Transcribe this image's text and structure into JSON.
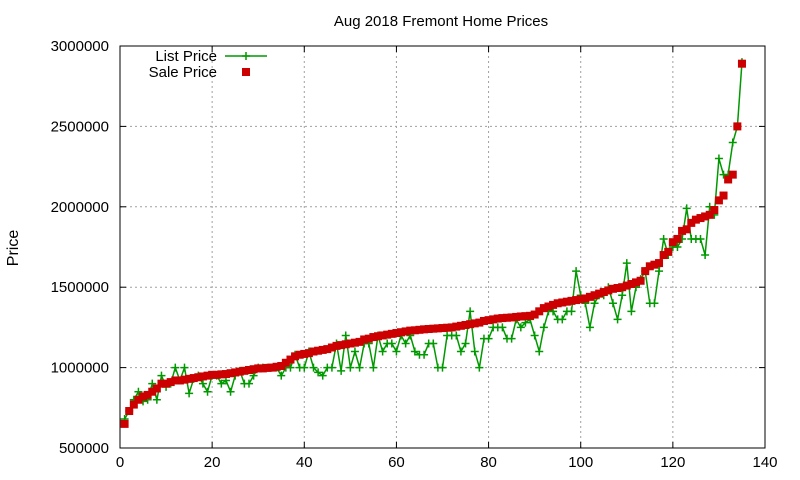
{
  "chart_data": {
    "type": "line",
    "title": "Aug 2018 Fremont Home Prices",
    "xlabel": "",
    "ylabel": "Price",
    "xlim": [
      0,
      140
    ],
    "ylim": [
      500000,
      3000000
    ],
    "x_ticks": [
      0,
      20,
      40,
      60,
      80,
      100,
      120,
      140
    ],
    "y_ticks": [
      500000,
      1000000,
      1500000,
      2000000,
      2500000,
      3000000
    ],
    "x_tick_labels": [
      "0",
      "20",
      "40",
      "60",
      "80",
      "100",
      "120",
      "140"
    ],
    "y_tick_labels": [
      "500000",
      "1000000",
      "1500000",
      "2000000",
      "2500000",
      "3000000"
    ],
    "grid": true,
    "legend_position": "top-left",
    "series": [
      {
        "name": "List Price",
        "marker": "plus",
        "color": "#009900",
        "x": [
          1,
          2,
          3,
          4,
          5,
          6,
          7,
          8,
          9,
          10,
          11,
          12,
          13,
          14,
          15,
          16,
          17,
          18,
          19,
          20,
          21,
          22,
          23,
          24,
          25,
          26,
          27,
          28,
          29,
          30,
          31,
          32,
          33,
          34,
          35,
          36,
          37,
          38,
          39,
          40,
          41,
          42,
          43,
          44,
          45,
          46,
          47,
          48,
          49,
          50,
          51,
          52,
          53,
          54,
          55,
          56,
          57,
          58,
          59,
          60,
          61,
          62,
          63,
          64,
          65,
          66,
          67,
          68,
          69,
          70,
          71,
          72,
          73,
          74,
          75,
          76,
          77,
          78,
          79,
          80,
          81,
          82,
          83,
          84,
          85,
          86,
          87,
          88,
          89,
          90,
          91,
          92,
          93,
          94,
          95,
          96,
          97,
          98,
          99,
          100,
          101,
          102,
          103,
          104,
          105,
          106,
          107,
          108,
          109,
          110,
          111,
          112,
          113,
          114,
          115,
          116,
          117,
          118,
          119,
          120,
          121,
          122,
          123,
          124,
          125,
          126,
          127,
          128,
          129,
          130,
          131,
          132,
          133,
          134,
          135
        ],
        "y": [
          680000,
          730000,
          800000,
          850000,
          790000,
          800000,
          900000,
          800000,
          950000,
          880000,
          900000,
          1000000,
          920000,
          1000000,
          840000,
          930000,
          950000,
          900000,
          850000,
          950000,
          950000,
          900000,
          920000,
          850000,
          950000,
          980000,
          900000,
          900000,
          950000,
          1000000,
          1000000,
          1000000,
          1000000,
          1000000,
          950000,
          1000000,
          1000000,
          1080000,
          1000000,
          1000000,
          1100000,
          1000000,
          970000,
          950000,
          1000000,
          1000000,
          1150000,
          980000,
          1200000,
          1000000,
          1100000,
          1000000,
          1150000,
          1150000,
          1000000,
          1200000,
          1100000,
          1150000,
          1150000,
          1100000,
          1200000,
          1150000,
          1200000,
          1100000,
          1080000,
          1080000,
          1150000,
          1150000,
          1000000,
          1000000,
          1200000,
          1200000,
          1200000,
          1100000,
          1150000,
          1350000,
          1100000,
          1000000,
          1180000,
          1180000,
          1250000,
          1250000,
          1250000,
          1180000,
          1180000,
          1300000,
          1250000,
          1280000,
          1300000,
          1200000,
          1100000,
          1250000,
          1350000,
          1350000,
          1300000,
          1300000,
          1350000,
          1350000,
          1600000,
          1450000,
          1400000,
          1250000,
          1400000,
          1450000,
          1450000,
          1500000,
          1400000,
          1300000,
          1450000,
          1650000,
          1350000,
          1500000,
          1550000,
          1600000,
          1400000,
          1400000,
          1600000,
          1800000,
          1700000,
          1750000,
          1750000,
          1800000,
          1990000,
          1800000,
          1800000,
          1800000,
          1700000,
          2000000,
          1950000,
          2300000,
          2200000,
          2200000,
          2400000,
          2500000,
          2900000
        ]
      },
      {
        "name": "Sale Price",
        "marker": "square",
        "color": "#cc0000",
        "x": [
          1,
          2,
          3,
          4,
          5,
          6,
          7,
          8,
          9,
          10,
          11,
          12,
          13,
          14,
          15,
          16,
          17,
          18,
          19,
          20,
          21,
          22,
          23,
          24,
          25,
          26,
          27,
          28,
          29,
          30,
          31,
          32,
          33,
          34,
          35,
          36,
          37,
          38,
          39,
          40,
          41,
          42,
          43,
          44,
          45,
          46,
          47,
          48,
          49,
          50,
          51,
          52,
          53,
          54,
          55,
          56,
          57,
          58,
          59,
          60,
          61,
          62,
          63,
          64,
          65,
          66,
          67,
          68,
          69,
          70,
          71,
          72,
          73,
          74,
          75,
          76,
          77,
          78,
          79,
          80,
          81,
          82,
          83,
          84,
          85,
          86,
          87,
          88,
          89,
          90,
          91,
          92,
          93,
          94,
          95,
          96,
          97,
          98,
          99,
          100,
          101,
          102,
          103,
          104,
          105,
          106,
          107,
          108,
          109,
          110,
          111,
          112,
          113,
          114,
          115,
          116,
          117,
          118,
          119,
          120,
          121,
          122,
          123,
          124,
          125,
          126,
          127,
          128,
          129,
          130,
          131,
          132,
          133,
          134,
          135
        ],
        "y": [
          650000,
          730000,
          770000,
          800000,
          820000,
          830000,
          850000,
          870000,
          900000,
          900000,
          910000,
          920000,
          920000,
          925000,
          930000,
          935000,
          940000,
          945000,
          950000,
          955000,
          955000,
          958000,
          960000,
          965000,
          970000,
          975000,
          980000,
          985000,
          990000,
          995000,
          995000,
          998000,
          1000000,
          1005000,
          1010000,
          1030000,
          1050000,
          1070000,
          1080000,
          1085000,
          1090000,
          1100000,
          1105000,
          1110000,
          1115000,
          1125000,
          1135000,
          1140000,
          1145000,
          1150000,
          1155000,
          1160000,
          1175000,
          1180000,
          1190000,
          1195000,
          1200000,
          1205000,
          1210000,
          1215000,
          1220000,
          1225000,
          1230000,
          1232000,
          1235000,
          1238000,
          1240000,
          1242000,
          1244000,
          1246000,
          1248000,
          1250000,
          1255000,
          1260000,
          1265000,
          1270000,
          1275000,
          1280000,
          1290000,
          1295000,
          1300000,
          1305000,
          1308000,
          1310000,
          1312000,
          1315000,
          1318000,
          1320000,
          1322000,
          1330000,
          1350000,
          1370000,
          1380000,
          1390000,
          1400000,
          1405000,
          1410000,
          1415000,
          1420000,
          1425000,
          1430000,
          1440000,
          1450000,
          1460000,
          1470000,
          1480000,
          1490000,
          1495000,
          1500000,
          1510000,
          1520000,
          1530000,
          1540000,
          1600000,
          1630000,
          1640000,
          1650000,
          1700000,
          1720000,
          1780000,
          1800000,
          1850000,
          1860000,
          1900000,
          1920000,
          1930000,
          1940000,
          1950000,
          1980000,
          2040000,
          2070000,
          2170000,
          2200000,
          2500000,
          2890000
        ]
      }
    ]
  }
}
